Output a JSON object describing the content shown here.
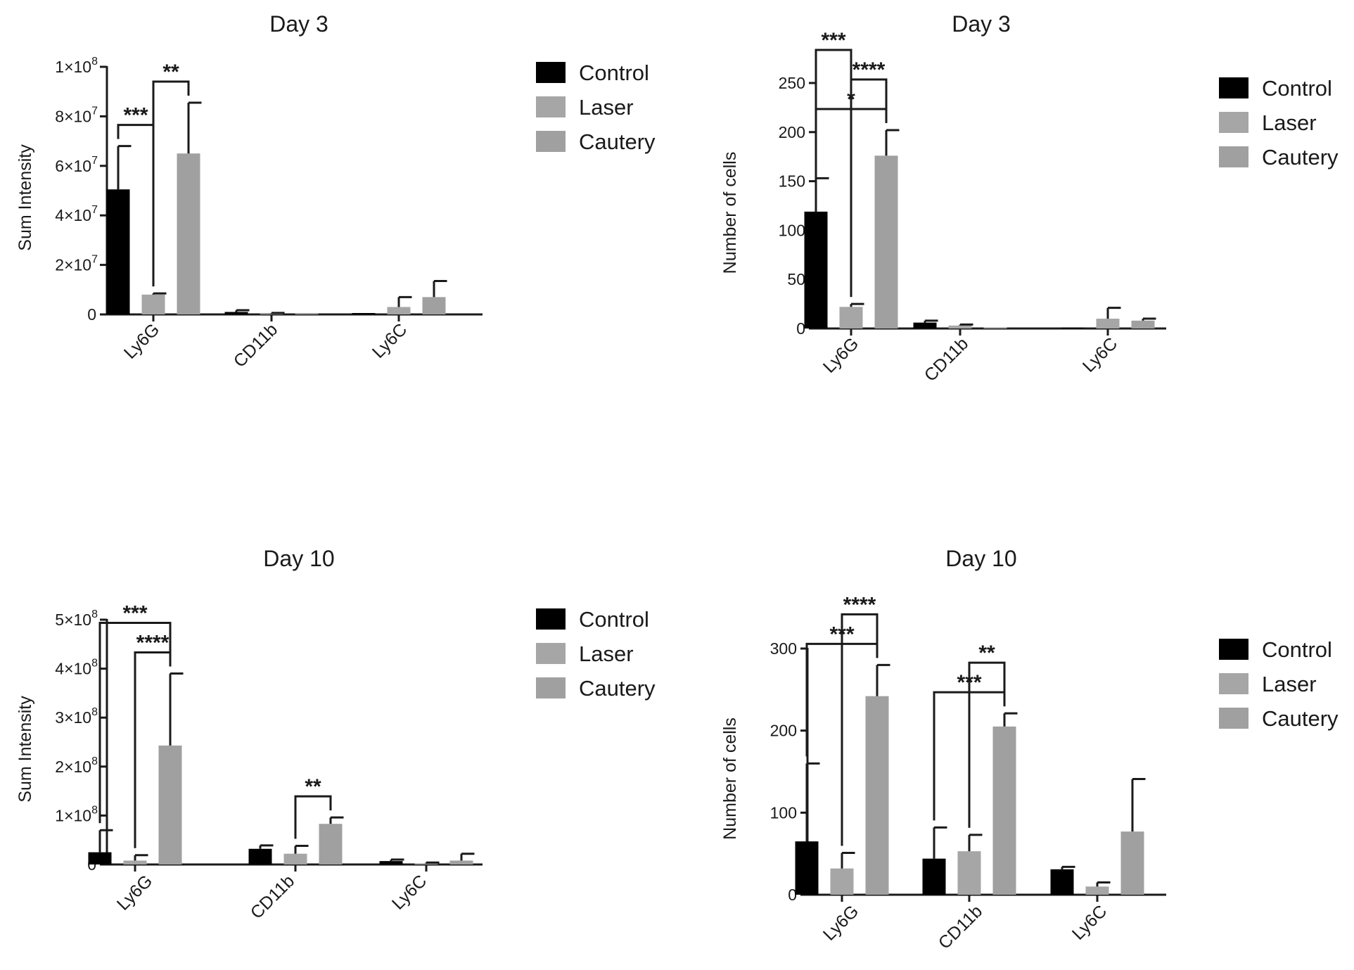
{
  "colors": {
    "Control": "#000000",
    "Laser": "#a6a6a6",
    "Cautery": "#a0a0a0",
    "axis": "#1a1a1a"
  },
  "chart_data": [
    {
      "type": "bar",
      "title": "Day 3",
      "ylabel": "Sum Intensity",
      "xlabel": "",
      "categories": [
        "Ly6G",
        "CD11b",
        "Ly6C"
      ],
      "ylim": [
        0,
        100000000
      ],
      "yticks": [
        {
          "value": 0,
          "label": "0",
          "mant": "0",
          "exp": ""
        },
        {
          "value": 20000000,
          "label": "2×10^7",
          "mant": "2×10",
          "exp": "7"
        },
        {
          "value": 40000000,
          "label": "4×10^7",
          "mant": "4×10",
          "exp": "7"
        },
        {
          "value": 60000000,
          "label": "6×10^7",
          "mant": "6×10",
          "exp": "7"
        },
        {
          "value": 80000000,
          "label": "8×10^7",
          "mant": "8×10",
          "exp": "7"
        },
        {
          "value": 100000000,
          "label": "1×10^8",
          "mant": "1×10",
          "exp": "8"
        }
      ],
      "series": [
        {
          "name": "Control",
          "values": [
            50500000,
            1000000,
            0
          ],
          "errors": [
            17500000,
            700000,
            0
          ]
        },
        {
          "name": "Laser",
          "values": [
            8000000,
            300000,
            3000000
          ],
          "errors": [
            500000,
            300000,
            4000000
          ]
        },
        {
          "name": "Cautery",
          "values": [
            65000000,
            0,
            7000000
          ],
          "errors": [
            20500000,
            0,
            6500000
          ]
        }
      ],
      "significance": [
        {
          "label": "***",
          "category": 0,
          "from": "Control",
          "to": "Laser"
        },
        {
          "label": "**",
          "category": 0,
          "from": "Laser",
          "to": "Cautery"
        }
      ],
      "legend": [
        "Control",
        "Laser",
        "Cautery"
      ]
    },
    {
      "type": "bar",
      "title": "Day 3",
      "ylabel": "Number of cells",
      "xlabel": "",
      "categories": [
        "Ly6G",
        "CD11b",
        "Ly6C"
      ],
      "ylim": [
        0,
        250
      ],
      "yticks": [
        {
          "value": 0,
          "label": "0",
          "mant": "0",
          "exp": ""
        },
        {
          "value": 50,
          "label": "50",
          "mant": "50",
          "exp": ""
        },
        {
          "value": 100,
          "label": "100",
          "mant": "100",
          "exp": ""
        },
        {
          "value": 150,
          "label": "150",
          "mant": "150",
          "exp": ""
        },
        {
          "value": 200,
          "label": "200",
          "mant": "200",
          "exp": ""
        },
        {
          "value": 250,
          "label": "250",
          "mant": "250",
          "exp": ""
        }
      ],
      "series": [
        {
          "name": "Control",
          "values": [
            119,
            6,
            1
          ],
          "errors": [
            34,
            2,
            0
          ]
        },
        {
          "name": "Laser",
          "values": [
            22,
            3,
            10
          ],
          "errors": [
            3,
            1,
            11
          ]
        },
        {
          "name": "Cautery",
          "values": [
            176,
            1,
            8
          ],
          "errors": [
            26,
            0,
            2
          ]
        }
      ],
      "significance": [
        {
          "label": "*",
          "category": 0,
          "from": "Control",
          "to": "Cautery"
        },
        {
          "label": "****",
          "category": 0,
          "from": "Laser",
          "to": "Cautery"
        },
        {
          "label": "***",
          "category": 0,
          "from": "Control",
          "to": "Laser"
        }
      ],
      "legend": [
        "Control",
        "Laser",
        "Cautery"
      ]
    },
    {
      "type": "bar",
      "title": "Day 10",
      "ylabel": "Sum Intensity",
      "xlabel": "",
      "categories": [
        "Ly6G",
        "CD11b",
        "Ly6C"
      ],
      "ylim": [
        0,
        500000000
      ],
      "yticks": [
        {
          "value": 0,
          "label": "0",
          "mant": "0",
          "exp": ""
        },
        {
          "value": 100000000,
          "label": "1×10^8",
          "mant": "1×10",
          "exp": "8"
        },
        {
          "value": 200000000,
          "label": "2×10^8",
          "mant": "2×10",
          "exp": "8"
        },
        {
          "value": 300000000,
          "label": "3×10^8",
          "mant": "3×10",
          "exp": "8"
        },
        {
          "value": 400000000,
          "label": "4×10^8",
          "mant": "4×10",
          "exp": "8"
        },
        {
          "value": 500000000,
          "label": "5×10^8",
          "mant": "5×10",
          "exp": "8"
        }
      ],
      "series": [
        {
          "name": "Control",
          "values": [
            25000000,
            32000000,
            7000000
          ],
          "errors": [
            45000000,
            7000000,
            3000000
          ]
        },
        {
          "name": "Laser",
          "values": [
            8000000,
            22000000,
            2000000
          ],
          "errors": [
            11000000,
            16000000,
            2000000
          ]
        },
        {
          "name": "Cautery",
          "values": [
            243000000,
            83000000,
            8000000
          ],
          "errors": [
            147000000,
            13000000,
            14000000
          ]
        }
      ],
      "significance": [
        {
          "label": "****",
          "category": 0,
          "from": "Laser",
          "to": "Cautery"
        },
        {
          "label": "***",
          "category": 0,
          "from": "Control",
          "to": "Cautery"
        },
        {
          "label": "**",
          "category": 1,
          "from": "Laser",
          "to": "Cautery"
        }
      ],
      "legend": [
        "Control",
        "Laser",
        "Cautery"
      ]
    },
    {
      "type": "bar",
      "title": "Day 10",
      "ylabel": "Number of cells",
      "xlabel": "",
      "categories": [
        "Ly6G",
        "CD11b",
        "Ly6C"
      ],
      "ylim": [
        0,
        300
      ],
      "yticks": [
        {
          "value": 0,
          "label": "0",
          "mant": "0",
          "exp": ""
        },
        {
          "value": 100,
          "label": "100",
          "mant": "100",
          "exp": ""
        },
        {
          "value": 200,
          "label": "200",
          "mant": "200",
          "exp": ""
        },
        {
          "value": 300,
          "label": "300",
          "mant": "300",
          "exp": ""
        }
      ],
      "series": [
        {
          "name": "Control",
          "values": [
            65,
            44,
            31
          ],
          "errors": [
            95,
            38,
            3
          ]
        },
        {
          "name": "Laser",
          "values": [
            32,
            53,
            10
          ],
          "errors": [
            19,
            20,
            5
          ]
        },
        {
          "name": "Cautery",
          "values": [
            242,
            205,
            77
          ],
          "errors": [
            38,
            16,
            64
          ]
        }
      ],
      "significance": [
        {
          "label": "***",
          "category": 0,
          "from": "Control",
          "to": "Cautery"
        },
        {
          "label": "****",
          "category": 0,
          "from": "Laser",
          "to": "Cautery"
        },
        {
          "label": "***",
          "category": 1,
          "from": "Control",
          "to": "Cautery"
        },
        {
          "label": "**",
          "category": 1,
          "from": "Laser",
          "to": "Cautery"
        }
      ],
      "legend": [
        "Control",
        "Laser",
        "Cautery"
      ]
    }
  ]
}
